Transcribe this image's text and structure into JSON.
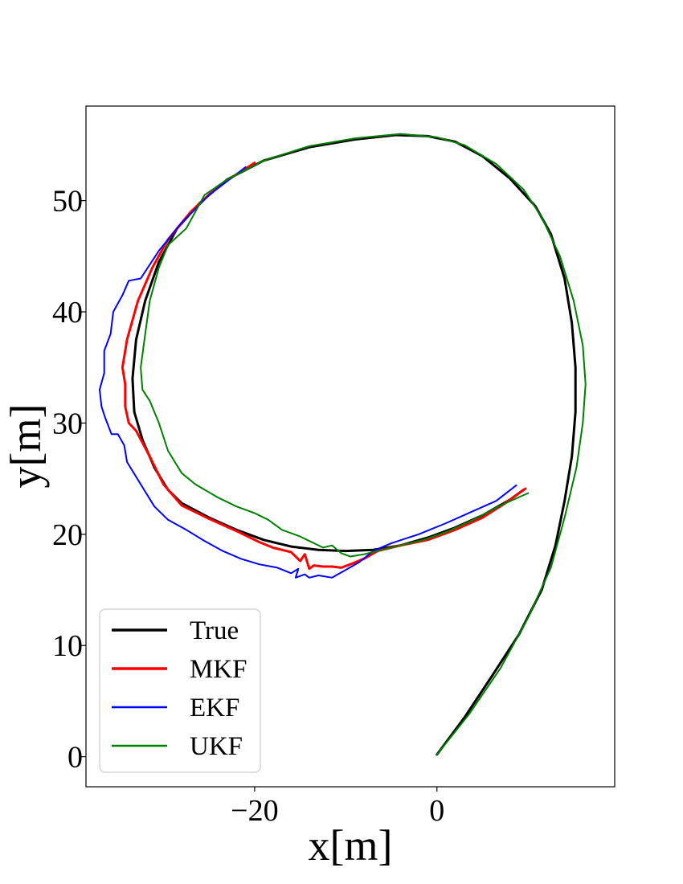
{
  "chart_data": {
    "type": "line",
    "title": "",
    "xlabel": "x[m]",
    "ylabel": "y[m]",
    "xlim": [
      -38.5,
      19.5
    ],
    "ylim": [
      -2.7,
      58.5
    ],
    "xticks": [
      {
        "value": -20,
        "label": "−20"
      },
      {
        "value": 0,
        "label": "0"
      }
    ],
    "yticks": [
      {
        "value": 0,
        "label": "0"
      },
      {
        "value": 10,
        "label": "10"
      },
      {
        "value": 20,
        "label": "20"
      },
      {
        "value": 30,
        "label": "30"
      },
      {
        "value": 40,
        "label": "40"
      },
      {
        "value": 50,
        "label": "50"
      }
    ],
    "grid": false,
    "legend": "lower-left",
    "series": [
      {
        "name": "True",
        "color": "#000000",
        "width": 3,
        "points": [
          [
            0,
            0.2
          ],
          [
            3,
            3.5
          ],
          [
            6,
            7.2
          ],
          [
            9,
            11
          ],
          [
            11.5,
            15
          ],
          [
            13,
            19
          ],
          [
            14,
            23
          ],
          [
            14.8,
            27
          ],
          [
            15.2,
            31
          ],
          [
            15.2,
            35
          ],
          [
            14.8,
            39
          ],
          [
            14,
            43
          ],
          [
            12.5,
            47
          ],
          [
            10.8,
            49.5
          ],
          [
            8,
            52
          ],
          [
            5,
            54
          ],
          [
            2,
            55.3
          ],
          [
            -1,
            55.8
          ],
          [
            -4.5,
            55.9
          ],
          [
            -9,
            55.5
          ],
          [
            -14,
            54.8
          ],
          [
            -19,
            53.6
          ],
          [
            -23,
            51.9
          ],
          [
            -26,
            49.8
          ],
          [
            -28.5,
            47.5
          ],
          [
            -30.5,
            44.5
          ],
          [
            -32,
            41
          ],
          [
            -33,
            37.5
          ],
          [
            -33.4,
            34
          ],
          [
            -33.2,
            31
          ],
          [
            -32.3,
            28.5
          ],
          [
            -31,
            26
          ],
          [
            -29.5,
            24
          ],
          [
            -28,
            22.8
          ],
          [
            -25,
            21.5
          ],
          [
            -22,
            20.4
          ],
          [
            -19,
            19.5
          ],
          [
            -16,
            18.9
          ],
          [
            -13,
            18.6
          ],
          [
            -10,
            18.5
          ],
          [
            -7,
            18.6
          ],
          [
            -4,
            19
          ],
          [
            -1,
            19.7
          ],
          [
            2,
            20.6
          ],
          [
            5,
            21.7
          ],
          [
            8,
            23.1
          ],
          [
            9.5,
            24
          ]
        ]
      },
      {
        "name": "MKF",
        "color": "#ff0000",
        "width": 3,
        "points": [
          [
            -20,
            53.4
          ],
          [
            -24,
            51.3
          ],
          [
            -27,
            49
          ],
          [
            -29.5,
            46.5
          ],
          [
            -31.2,
            44
          ],
          [
            -32.8,
            41
          ],
          [
            -34,
            37.5
          ],
          [
            -34.5,
            35
          ],
          [
            -34.2,
            33.5
          ],
          [
            -34.2,
            31.5
          ],
          [
            -33.8,
            30
          ],
          [
            -33,
            29.3
          ],
          [
            -31.5,
            27
          ],
          [
            -30,
            24.5
          ],
          [
            -28,
            22.6
          ],
          [
            -25,
            21.4
          ],
          [
            -22,
            20.3
          ],
          [
            -19.5,
            19.3
          ],
          [
            -18,
            18.8
          ],
          [
            -16,
            18.4
          ],
          [
            -15,
            17.6
          ],
          [
            -14.5,
            18.2
          ],
          [
            -14,
            16.9
          ],
          [
            -13.5,
            17.2
          ],
          [
            -12.5,
            17.1
          ],
          [
            -11.5,
            17.1
          ],
          [
            -10.5,
            17
          ],
          [
            -9.5,
            17.3
          ],
          [
            -8,
            17.8
          ],
          [
            -6.5,
            18.5
          ],
          [
            -4,
            19
          ],
          [
            -1,
            19.5
          ],
          [
            2,
            20.4
          ],
          [
            5,
            21.5
          ],
          [
            7.5,
            22.8
          ],
          [
            9.7,
            24.1
          ]
        ]
      },
      {
        "name": "EKF",
        "color": "#0000ff",
        "width": 2,
        "points": [
          [
            -21,
            53
          ],
          [
            -25,
            50.5
          ],
          [
            -28,
            48
          ],
          [
            -30.5,
            45.5
          ],
          [
            -32.5,
            43
          ],
          [
            -33.8,
            42.8
          ],
          [
            -34.5,
            41.5
          ],
          [
            -35.5,
            40
          ],
          [
            -35.8,
            38
          ],
          [
            -36.5,
            36.5
          ],
          [
            -36.5,
            34.5
          ],
          [
            -37,
            33
          ],
          [
            -36.8,
            31.5
          ],
          [
            -36.4,
            30.5
          ],
          [
            -35.7,
            29
          ],
          [
            -35,
            29
          ],
          [
            -34.3,
            28
          ],
          [
            -34,
            26.5
          ],
          [
            -32.5,
            24.5
          ],
          [
            -31,
            22.5
          ],
          [
            -29.5,
            21.3
          ],
          [
            -27.5,
            20.4
          ],
          [
            -25.5,
            19.4
          ],
          [
            -23.5,
            18.5
          ],
          [
            -21.5,
            17.8
          ],
          [
            -19.5,
            17.3
          ],
          [
            -17.5,
            17
          ],
          [
            -16,
            16.5
          ],
          [
            -15.2,
            16.9
          ],
          [
            -15.5,
            16.1
          ],
          [
            -14.5,
            16.4
          ],
          [
            -14,
            16.1
          ],
          [
            -13,
            16.3
          ],
          [
            -11.5,
            16.1
          ],
          [
            -10,
            16.8
          ],
          [
            -8.5,
            17.5
          ],
          [
            -7,
            18.5
          ],
          [
            -5,
            19.2
          ],
          [
            -2,
            20
          ],
          [
            1,
            21
          ],
          [
            4,
            22.1
          ],
          [
            6.5,
            23
          ],
          [
            8.7,
            24.4
          ]
        ]
      },
      {
        "name": "UKF",
        "color": "#008000",
        "width": 2,
        "points": [
          [
            0,
            0.2
          ],
          [
            3.5,
            3.8
          ],
          [
            7,
            8
          ],
          [
            10,
            12.5
          ],
          [
            12.5,
            17
          ],
          [
            14,
            21.5
          ],
          [
            15.3,
            26
          ],
          [
            16,
            30
          ],
          [
            16.3,
            33.5
          ],
          [
            16,
            37
          ],
          [
            15,
            41
          ],
          [
            13.5,
            45
          ],
          [
            11.5,
            48.5
          ],
          [
            9.5,
            51
          ],
          [
            6.5,
            53.3
          ],
          [
            3,
            55
          ],
          [
            0,
            55.7
          ],
          [
            -4,
            56
          ],
          [
            -9,
            55.6
          ],
          [
            -14,
            54.9
          ],
          [
            -19,
            53.6
          ],
          [
            -23,
            51.9
          ],
          [
            -25.5,
            50.5
          ],
          [
            -27.5,
            47.5
          ],
          [
            -29.5,
            46
          ],
          [
            -30.5,
            44
          ],
          [
            -31.5,
            41
          ],
          [
            -32,
            38
          ],
          [
            -32.5,
            35
          ],
          [
            -32.3,
            33
          ],
          [
            -31.5,
            32
          ],
          [
            -30.5,
            30
          ],
          [
            -29.5,
            27.5
          ],
          [
            -28,
            25.5
          ],
          [
            -26.5,
            24.5
          ],
          [
            -24,
            23.3
          ],
          [
            -22,
            22.5
          ],
          [
            -20,
            21.9
          ],
          [
            -18.5,
            21.3
          ],
          [
            -17,
            20.4
          ],
          [
            -15,
            19.8
          ],
          [
            -13.5,
            19.2
          ],
          [
            -12.5,
            18.8
          ],
          [
            -11.5,
            19
          ],
          [
            -10.5,
            18.3
          ],
          [
            -9.5,
            18
          ],
          [
            -8,
            18.2
          ],
          [
            -6,
            18.6
          ],
          [
            -4,
            19
          ],
          [
            -1.5,
            19.5
          ],
          [
            1,
            20.2
          ],
          [
            4,
            21.3
          ],
          [
            7,
            22.6
          ],
          [
            10,
            23.7
          ]
        ]
      }
    ]
  }
}
